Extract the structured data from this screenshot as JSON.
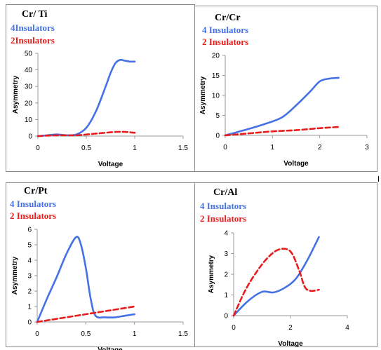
{
  "colors": {
    "series_4": "#4472e6",
    "series_2": "#e81c1c"
  },
  "chart_data": [
    {
      "type": "line",
      "title": "Cr/ Ti",
      "xlabel": "Voltage",
      "ylabel": "Asymmetry",
      "xlim": [
        0,
        1.5
      ],
      "ylim": [
        0,
        50
      ],
      "xticks": [
        0,
        0.5,
        1,
        1.5
      ],
      "yticks": [
        0,
        10,
        20,
        30,
        40,
        50
      ],
      "xtick_labels": [
        "0",
        "0.5",
        "1",
        "1.5"
      ],
      "ytick_labels": [
        "0",
        "10",
        "20",
        "30",
        "40",
        "50"
      ],
      "series": [
        {
          "name": "4Insulators",
          "color": "#4472e6",
          "dashed": false,
          "x": [
            0,
            0.1,
            0.2,
            0.3,
            0.4,
            0.5,
            0.6,
            0.7,
            0.75,
            0.8,
            0.85,
            0.9,
            0.95,
            1.0
          ],
          "y": [
            0,
            0.5,
            1,
            0.5,
            1,
            5,
            15,
            30,
            38,
            44,
            46,
            45.5,
            45,
            45
          ]
        },
        {
          "name": "2Insulators",
          "color": "#e81c1c",
          "dashed": true,
          "x": [
            0,
            0.2,
            0.4,
            0.6,
            0.8,
            0.9,
            1.0
          ],
          "y": [
            0,
            0.5,
            0.5,
            1.5,
            2.5,
            2.5,
            2
          ]
        }
      ]
    },
    {
      "type": "line",
      "title": "Cr/Cr",
      "xlabel": "Voltage",
      "ylabel": "Asymmetry",
      "xlim": [
        0,
        3
      ],
      "ylim": [
        0,
        20
      ],
      "xticks": [
        0,
        1,
        2,
        3
      ],
      "yticks": [
        0,
        5,
        10,
        15,
        20
      ],
      "xtick_labels": [
        "0",
        "1",
        "2",
        "3"
      ],
      "ytick_labels": [
        "0",
        "5",
        "10",
        "15",
        "20"
      ],
      "series": [
        {
          "name": "4 Insulators",
          "color": "#4472e6",
          "dashed": false,
          "x": [
            0,
            0.4,
            0.8,
            1.2,
            1.5,
            1.8,
            2.0,
            2.2,
            2.4
          ],
          "y": [
            0,
            1.3,
            2.7,
            4.5,
            7.5,
            11,
            13.5,
            14.2,
            14.4
          ]
        },
        {
          "name": "2 Insulators",
          "color": "#e81c1c",
          "dashed": true,
          "x": [
            0,
            0.5,
            1.0,
            1.5,
            2.0,
            2.4
          ],
          "y": [
            0,
            0.5,
            1,
            1.3,
            1.8,
            2.1
          ]
        }
      ]
    },
    {
      "type": "line",
      "title": "Cr/Pt",
      "xlabel": "Voltage",
      "ylabel": "Asymmetry",
      "xlim": [
        0,
        1.5
      ],
      "ylim": [
        0,
        6
      ],
      "xticks": [
        0,
        0.5,
        1,
        1.5
      ],
      "yticks": [
        0,
        1,
        2,
        3,
        4,
        5,
        6
      ],
      "xtick_labels": [
        "0",
        "0.5",
        "1",
        "1.5"
      ],
      "ytick_labels": [
        "0",
        "1",
        "2",
        "3",
        "4",
        "5",
        "6"
      ],
      "series": [
        {
          "name": "4 Insulators",
          "color": "#4472e6",
          "dashed": false,
          "x": [
            0,
            0.1,
            0.2,
            0.3,
            0.4,
            0.45,
            0.5,
            0.55,
            0.6,
            0.7,
            0.8,
            0.9,
            1.0
          ],
          "y": [
            0,
            1.5,
            2.9,
            4.4,
            5.5,
            5.0,
            3.5,
            1.5,
            0.4,
            0.3,
            0.3,
            0.4,
            0.5
          ]
        },
        {
          "name": "2 Insulators",
          "color": "#e81c1c",
          "dashed": true,
          "x": [
            0,
            0.25,
            0.5,
            0.75,
            1.0
          ],
          "y": [
            0,
            0.25,
            0.5,
            0.75,
            1.0
          ]
        }
      ]
    },
    {
      "type": "line",
      "title": "Cr/Al",
      "xlabel": "Voltage",
      "ylabel": "Asymmetry",
      "xlim": [
        0,
        4
      ],
      "ylim": [
        0,
        4
      ],
      "xticks": [
        0,
        2,
        4
      ],
      "yticks": [
        0,
        1,
        2,
        3,
        4
      ],
      "xtick_labels": [
        "0",
        "2",
        "4"
      ],
      "ytick_labels": [
        "0",
        "1",
        "2",
        "3",
        "4"
      ],
      "series": [
        {
          "name": "4 Insulators",
          "color": "#4472e6",
          "dashed": false,
          "x": [
            0,
            0.5,
            1.0,
            1.4,
            1.8,
            2.2,
            2.6,
            3.0
          ],
          "y": [
            0,
            0.7,
            1.15,
            1.12,
            1.35,
            1.8,
            2.7,
            3.8
          ]
        },
        {
          "name": "2 Insulators",
          "color": "#e81c1c",
          "dashed": true,
          "x": [
            0,
            0.4,
            0.8,
            1.2,
            1.6,
            2.0,
            2.3,
            2.5,
            2.7,
            3.0
          ],
          "y": [
            0,
            1.2,
            2.1,
            2.8,
            3.2,
            3.1,
            2.2,
            1.4,
            1.2,
            1.25
          ]
        }
      ]
    }
  ]
}
